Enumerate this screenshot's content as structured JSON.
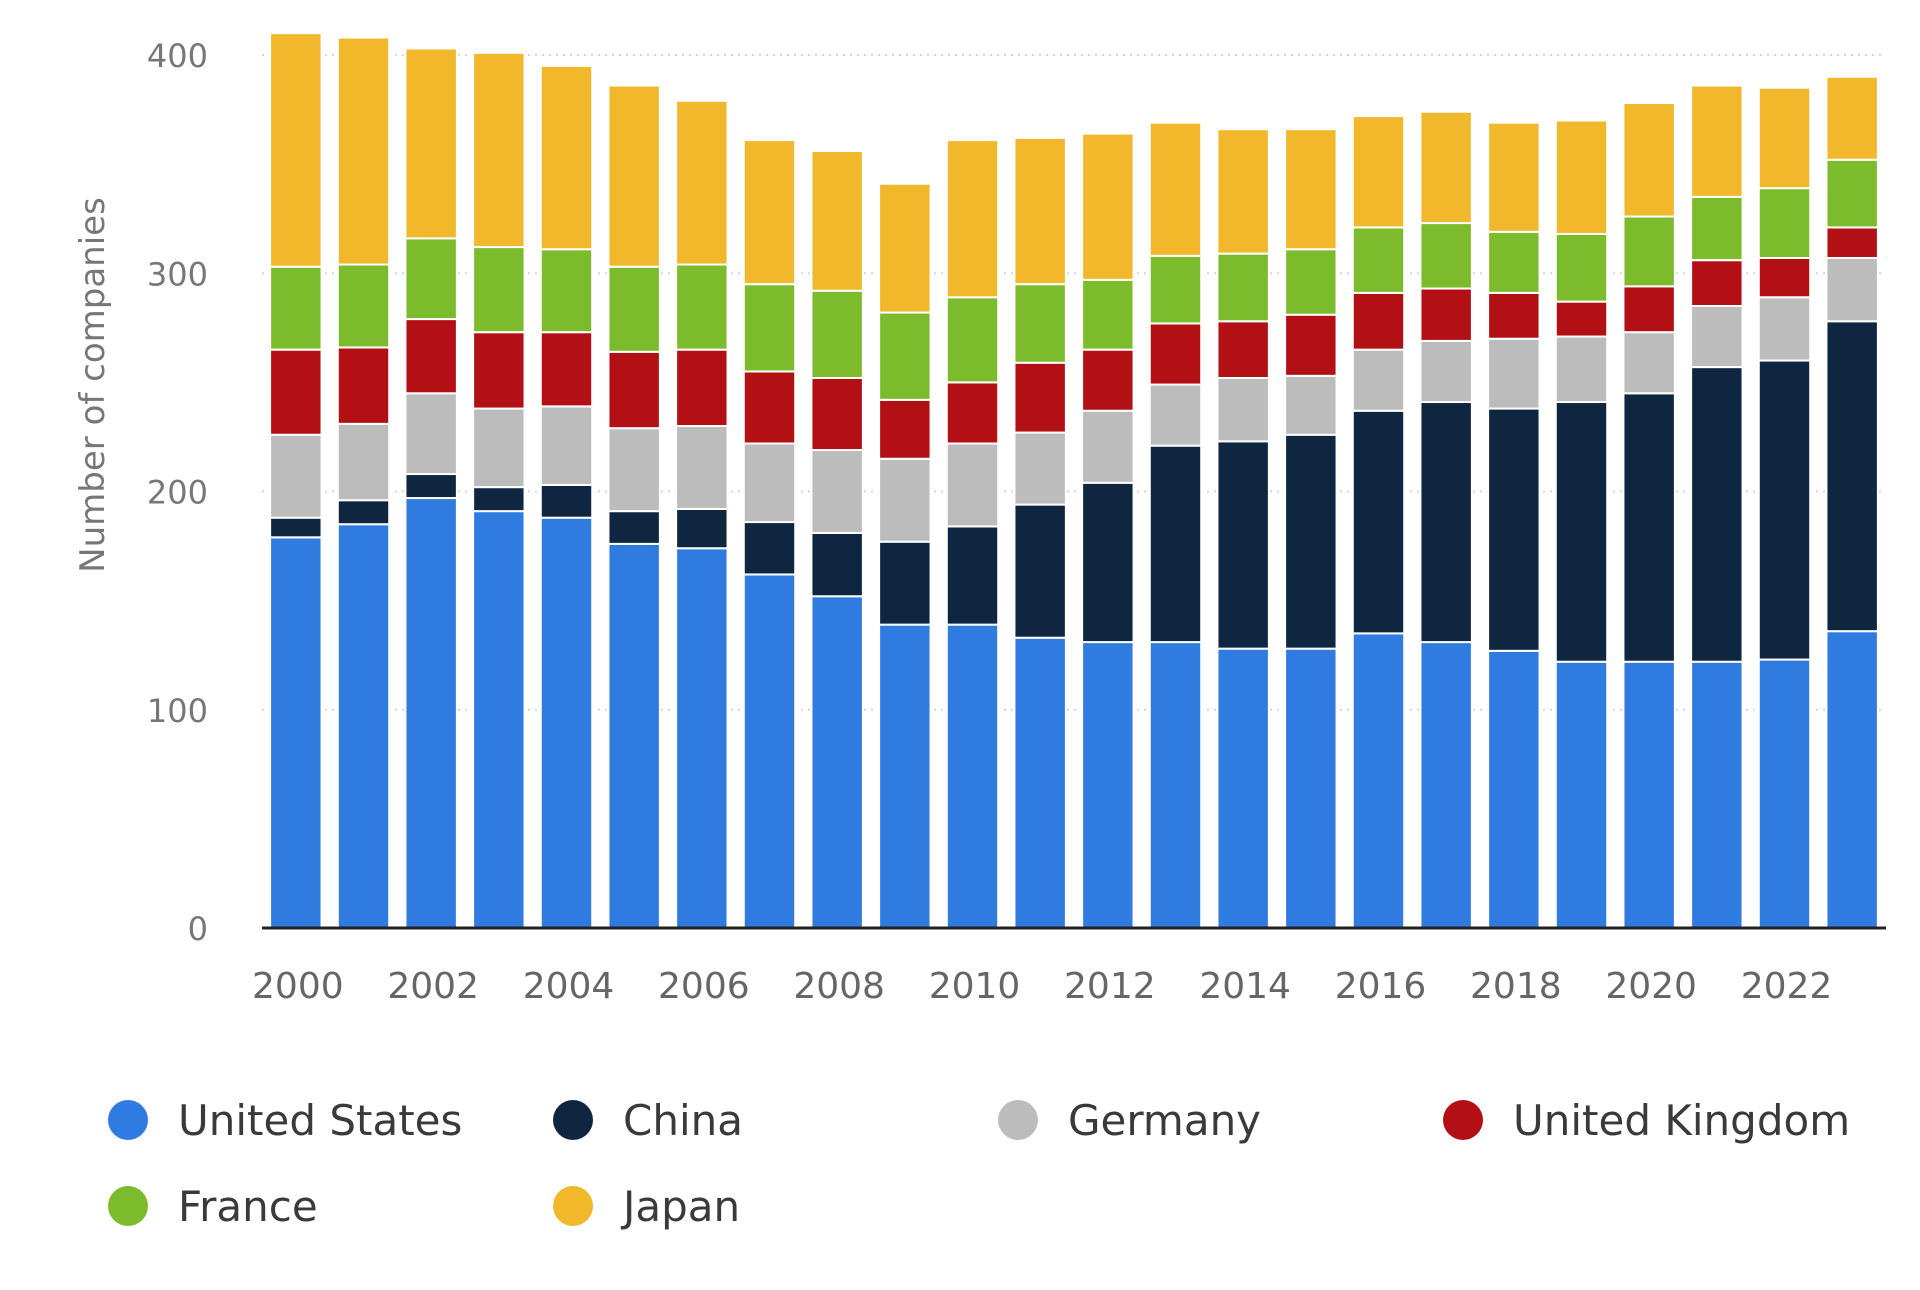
{
  "chart_data": {
    "type": "bar",
    "stacked": true,
    "ylabel": "Number of companies",
    "ylim": [
      0,
      400
    ],
    "y_ticks": [
      0,
      100,
      200,
      300,
      400
    ],
    "grid": true,
    "legend_position": "bottom",
    "categories": [
      "2000",
      "2001",
      "2002",
      "2003",
      "2004",
      "2005",
      "2006",
      "2007",
      "2008",
      "2009",
      "2010",
      "2011",
      "2012",
      "2013",
      "2014",
      "2015",
      "2016",
      "2017",
      "2018",
      "2019",
      "2020",
      "2021",
      "2022",
      "2023"
    ],
    "x_tick_labels": [
      "2000",
      "2002",
      "2004",
      "2006",
      "2008",
      "2010",
      "2012",
      "2014",
      "2016",
      "2018",
      "2020",
      "2022"
    ],
    "series": [
      {
        "name": "United States",
        "color": "#2f7be0",
        "values": [
          179,
          185,
          197,
          191,
          188,
          176,
          174,
          162,
          152,
          139,
          139,
          133,
          131,
          131,
          128,
          128,
          135,
          131,
          127,
          122,
          122,
          122,
          123,
          136
        ]
      },
      {
        "name": "China",
        "color": "#0f2640",
        "values": [
          9,
          11,
          11,
          11,
          15,
          15,
          18,
          24,
          29,
          38,
          45,
          61,
          73,
          90,
          95,
          98,
          102,
          110,
          111,
          119,
          123,
          135,
          137,
          142
        ]
      },
      {
        "name": "Germany",
        "color": "#bcbcbc",
        "values": [
          38,
          35,
          37,
          36,
          36,
          38,
          38,
          36,
          38,
          38,
          38,
          33,
          33,
          28,
          29,
          27,
          28,
          28,
          32,
          30,
          28,
          28,
          29,
          29
        ]
      },
      {
        "name": "United Kingdom",
        "color": "#b21014",
        "values": [
          39,
          35,
          34,
          35,
          34,
          35,
          35,
          33,
          33,
          27,
          28,
          32,
          28,
          28,
          26,
          28,
          26,
          24,
          21,
          16,
          21,
          21,
          18,
          14
        ]
      },
      {
        "name": "France",
        "color": "#7cbb2c",
        "values": [
          38,
          38,
          37,
          39,
          38,
          39,
          39,
          40,
          40,
          40,
          39,
          36,
          32,
          31,
          31,
          30,
          30,
          30,
          28,
          31,
          32,
          29,
          32,
          31
        ]
      },
      {
        "name": "Japan",
        "color": "#f0b82a",
        "values": [
          107,
          104,
          87,
          89,
          84,
          83,
          75,
          66,
          64,
          59,
          72,
          67,
          67,
          61,
          57,
          55,
          51,
          51,
          50,
          52,
          52,
          51,
          46,
          38
        ]
      }
    ]
  }
}
